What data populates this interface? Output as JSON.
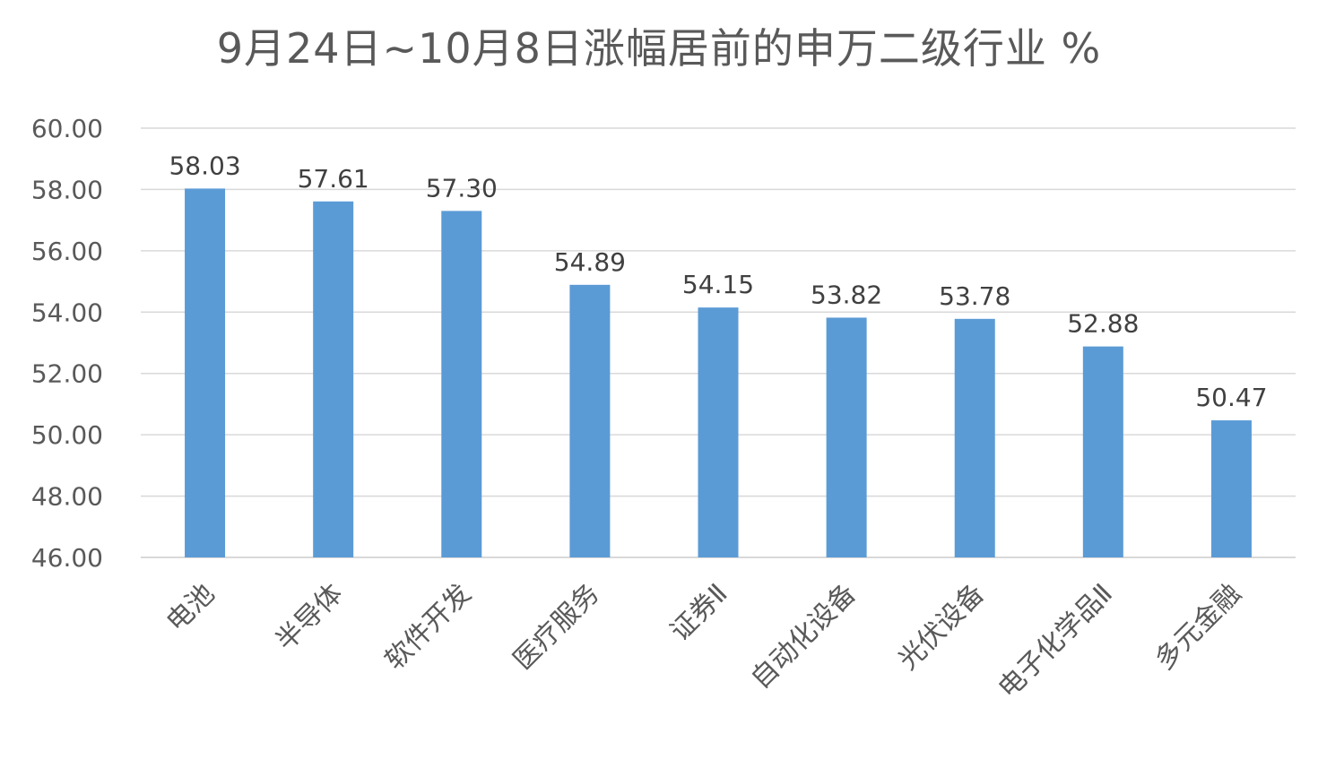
{
  "chart_data": {
    "type": "bar",
    "title": "9月24日~10月8日涨幅居前的申万二级行业 %",
    "categories": [
      "电池",
      "半导体",
      "软件开发",
      "医疗服务",
      "证券Ⅱ",
      "自动化设备",
      "光伏设备",
      "电子化学品Ⅱ",
      "多元金融"
    ],
    "values": [
      58.03,
      57.61,
      57.3,
      54.89,
      54.15,
      53.82,
      53.78,
      52.88,
      50.47
    ],
    "value_labels": [
      "58.03",
      "57.61",
      "57.30",
      "54.89",
      "54.15",
      "53.82",
      "53.78",
      "52.88",
      "50.47"
    ],
    "ylim": [
      46,
      60
    ],
    "yticks": [
      "46.00",
      "48.00",
      "50.00",
      "52.00",
      "54.00",
      "56.00",
      "58.00",
      "60.00"
    ],
    "xlabel": "",
    "ylabel": "",
    "grid": true,
    "bar_color": "#5B9BD5",
    "grid_color": "#D9D9D9"
  }
}
